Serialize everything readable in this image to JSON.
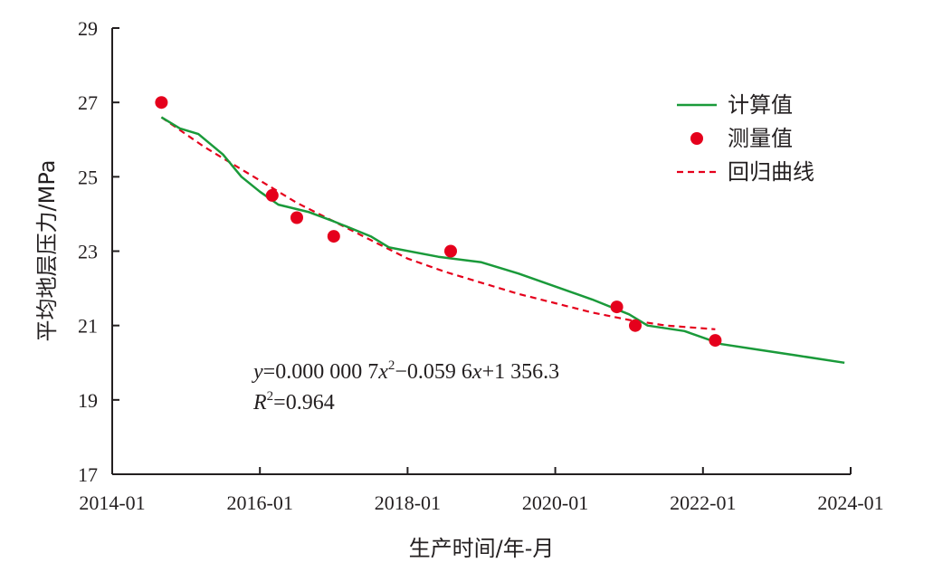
{
  "chart_data": {
    "type": "line",
    "xlabel": "生产时间/年-月",
    "ylabel": "平均地层压力/MPa",
    "x_ticks": [
      "2014-01",
      "2016-01",
      "2018-01",
      "2020-01",
      "2022-01",
      "2024-01"
    ],
    "y_ticks": [
      17,
      19,
      21,
      23,
      25,
      27,
      29
    ],
    "xlim": [
      "2014-01",
      "2024-01"
    ],
    "ylim": [
      17,
      29
    ],
    "grid": false,
    "legend": {
      "position": "top-right",
      "entries": [
        "计算值",
        "测量值",
        "回归曲线"
      ]
    },
    "colors": {
      "computed": "#1a9a3a",
      "measured": "#e5001c",
      "regression": "#e5001c",
      "axis": "#231f20"
    },
    "series": [
      {
        "name": "计算值",
        "style": "solid-line",
        "points": [
          {
            "x": "2014-09",
            "y": 26.6
          },
          {
            "x": "2014-12",
            "y": 26.3
          },
          {
            "x": "2015-03",
            "y": 26.15
          },
          {
            "x": "2015-07",
            "y": 25.6
          },
          {
            "x": "2015-10",
            "y": 25.0
          },
          {
            "x": "2016-01",
            "y": 24.6
          },
          {
            "x": "2016-04",
            "y": 24.25
          },
          {
            "x": "2016-09",
            "y": 24.05
          },
          {
            "x": "2017-01",
            "y": 23.8
          },
          {
            "x": "2017-07",
            "y": 23.4
          },
          {
            "x": "2017-10",
            "y": 23.1
          },
          {
            "x": "2018-06",
            "y": 22.85
          },
          {
            "x": "2019-01",
            "y": 22.7
          },
          {
            "x": "2019-07",
            "y": 22.4
          },
          {
            "x": "2020-07",
            "y": 21.7
          },
          {
            "x": "2021-01",
            "y": 21.3
          },
          {
            "x": "2021-04",
            "y": 21.0
          },
          {
            "x": "2021-10",
            "y": 20.85
          },
          {
            "x": "2022-04",
            "y": 20.5
          },
          {
            "x": "2022-10",
            "y": 20.35
          },
          {
            "x": "2023-04",
            "y": 20.2
          },
          {
            "x": "2023-12",
            "y": 20.0
          }
        ]
      },
      {
        "name": "测量值",
        "style": "markers",
        "points": [
          {
            "x": "2014-09",
            "y": 27.0
          },
          {
            "x": "2016-03",
            "y": 24.5
          },
          {
            "x": "2016-07",
            "y": 23.9
          },
          {
            "x": "2017-01",
            "y": 23.4
          },
          {
            "x": "2018-08",
            "y": 23.0
          },
          {
            "x": "2020-11",
            "y": 21.5
          },
          {
            "x": "2021-02",
            "y": 21.0
          },
          {
            "x": "2022-03",
            "y": 20.6
          }
        ]
      },
      {
        "name": "回归曲线",
        "style": "dashed-line",
        "points": [
          {
            "x": "2014-09",
            "y": 26.6
          },
          {
            "x": "2015-04",
            "y": 25.8
          },
          {
            "x": "2016-01",
            "y": 24.9
          },
          {
            "x": "2016-07",
            "y": 24.3
          },
          {
            "x": "2017-01",
            "y": 23.8
          },
          {
            "x": "2017-07",
            "y": 23.3
          },
          {
            "x": "2018-01",
            "y": 22.8
          },
          {
            "x": "2018-07",
            "y": 22.45
          },
          {
            "x": "2019-01",
            "y": 22.15
          },
          {
            "x": "2019-07",
            "y": 21.85
          },
          {
            "x": "2020-01",
            "y": 21.6
          },
          {
            "x": "2020-07",
            "y": 21.35
          },
          {
            "x": "2021-01",
            "y": 21.15
          },
          {
            "x": "2021-07",
            "y": 21.0
          },
          {
            "x": "2022-03",
            "y": 20.9
          }
        ]
      }
    ],
    "annotation": {
      "equation_prefix": "y",
      "equation_part1": "=0.000 000 7",
      "equation_x": "x",
      "equation_exp": "2",
      "equation_part2": "−0.059 6",
      "equation_x2": "x",
      "equation_part3": "+1 356.3",
      "r2_prefix": "R",
      "r2_exp": "2",
      "r2_value": "=0.964"
    }
  }
}
